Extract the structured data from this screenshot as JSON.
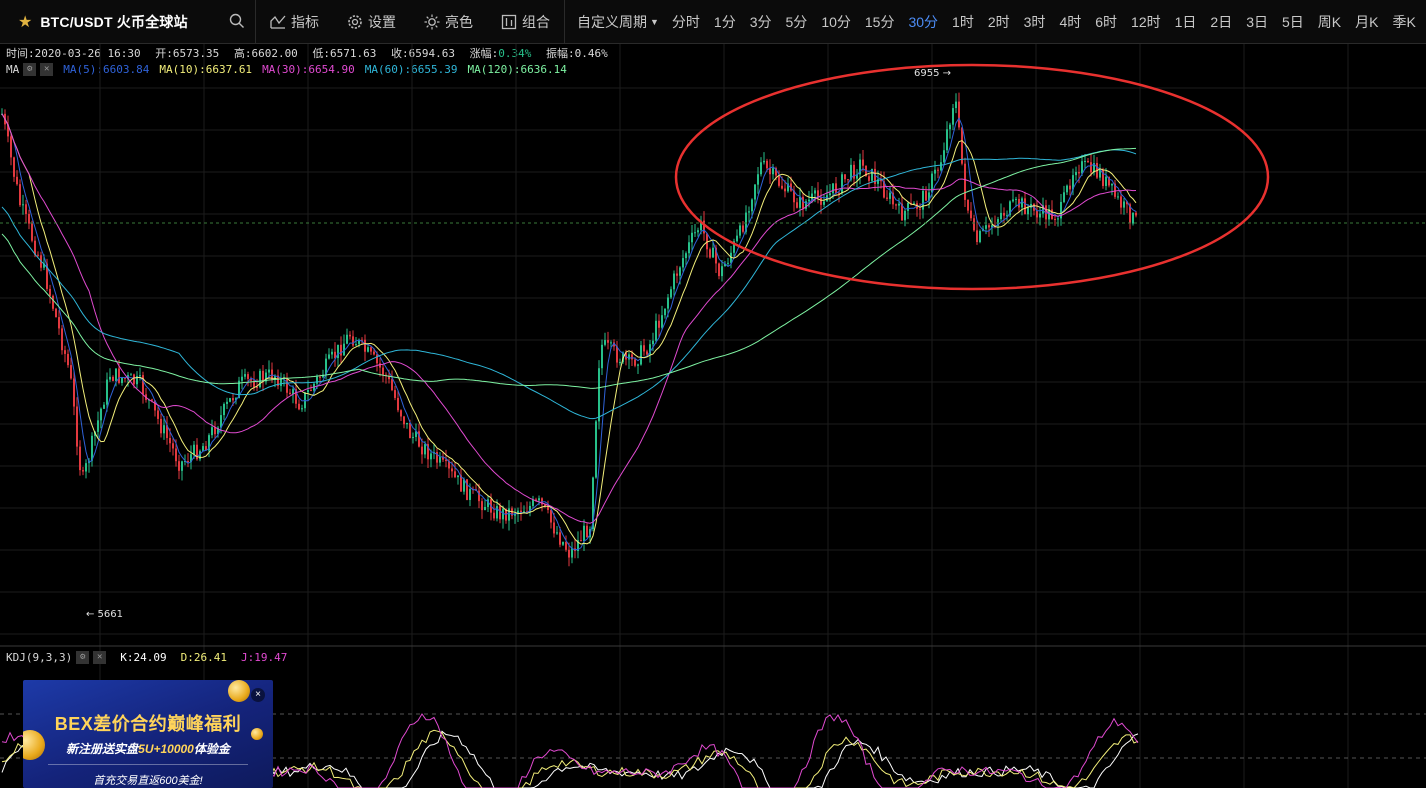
{
  "toolbar": {
    "symbol": "BTC/USDT 火币全球站",
    "tools": [
      {
        "icon": "indicator-icon",
        "label": "指标"
      },
      {
        "icon": "gear-icon",
        "label": "设置"
      },
      {
        "icon": "sun-icon",
        "label": "亮色"
      },
      {
        "icon": "combo-icon",
        "label": "组合"
      }
    ],
    "custom_period": "自定义周期",
    "periods": [
      "分时",
      "1分",
      "3分",
      "5分",
      "10分",
      "15分",
      "30分",
      "1时",
      "2时",
      "3时",
      "4时",
      "6时",
      "12时",
      "1日",
      "2日",
      "3日",
      "5日",
      "周K",
      "月K",
      "季K"
    ],
    "active_period": "30分"
  },
  "info": {
    "time": "时间:2020-03-26 16:30",
    "open": "开:6573.35",
    "high": "高:6602.00",
    "low": "低:6571.63",
    "close": "收:6594.63",
    "change_label": "涨幅:",
    "change": "0.34%",
    "amplitude": "振幅:0.46%"
  },
  "ma_legend": {
    "label": "MA",
    "items": [
      {
        "text": "MA(5):6603.84",
        "color": "#2f62d8"
      },
      {
        "text": "MA(10):6637.61",
        "color": "#f2ee7a"
      },
      {
        "text": "MA(30):6654.90",
        "color": "#e04ad0"
      },
      {
        "text": "MA(60):6655.39",
        "color": "#2fb6d8"
      },
      {
        "text": "MA(120):6636.14",
        "color": "#7ef2a2"
      }
    ]
  },
  "kdj_legend": {
    "label": "KDJ(9,3,3)",
    "items": [
      {
        "text": "K:24.09",
        "color": "#ffffff"
      },
      {
        "text": "D:26.41",
        "color": "#f2ee7a"
      },
      {
        "text": "J:19.47",
        "color": "#e04ad0"
      }
    ]
  },
  "chart_marks": {
    "high_label": "6955 →",
    "low_label": "← 5661"
  },
  "colors": {
    "up": "#27c08a",
    "down": "#e2393f",
    "grid": "#1c1c1c",
    "annotation": "#e8312f"
  },
  "ad": {
    "title": "BEX差价合约巅峰福利",
    "sub_prefix": "新注册送实盘",
    "sub_highlight": "5U+10000",
    "sub_suffix": "体验金",
    "footer": "首充交易直返600美金!",
    "close": "×"
  }
}
